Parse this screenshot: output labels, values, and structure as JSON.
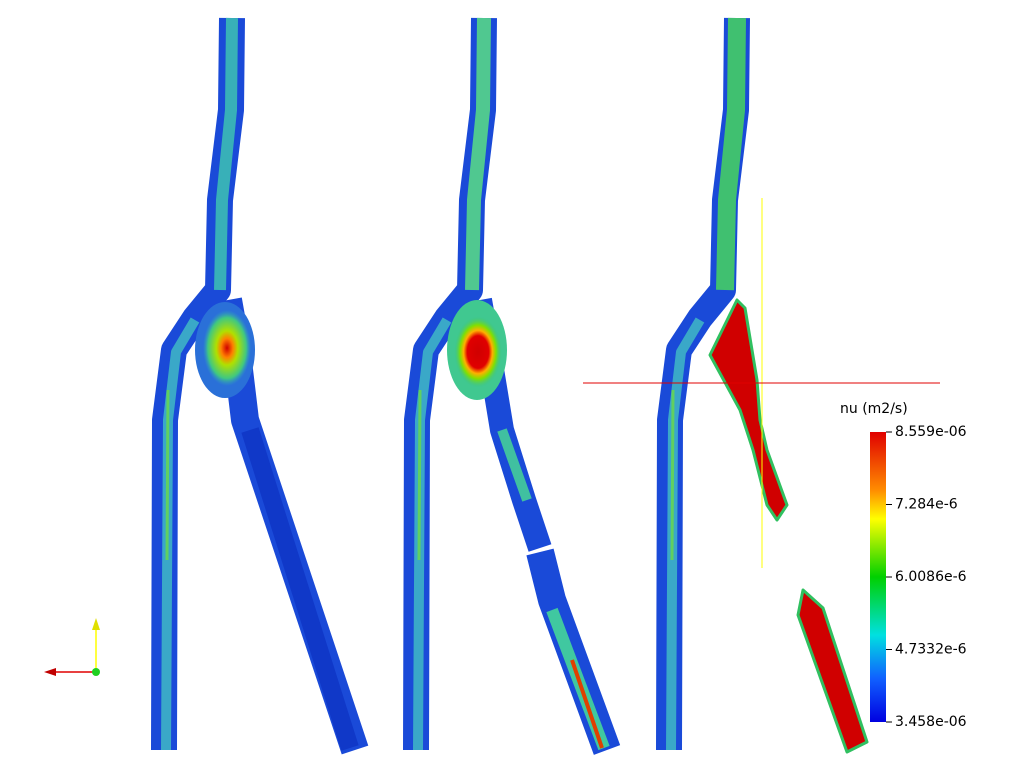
{
  "legend": {
    "title": "nu (m2/s)",
    "labels": [
      "8.559e-06",
      "7.284e-6",
      "6.0086e-6",
      "4.7332e-6",
      "3.458e-06"
    ]
  }
}
